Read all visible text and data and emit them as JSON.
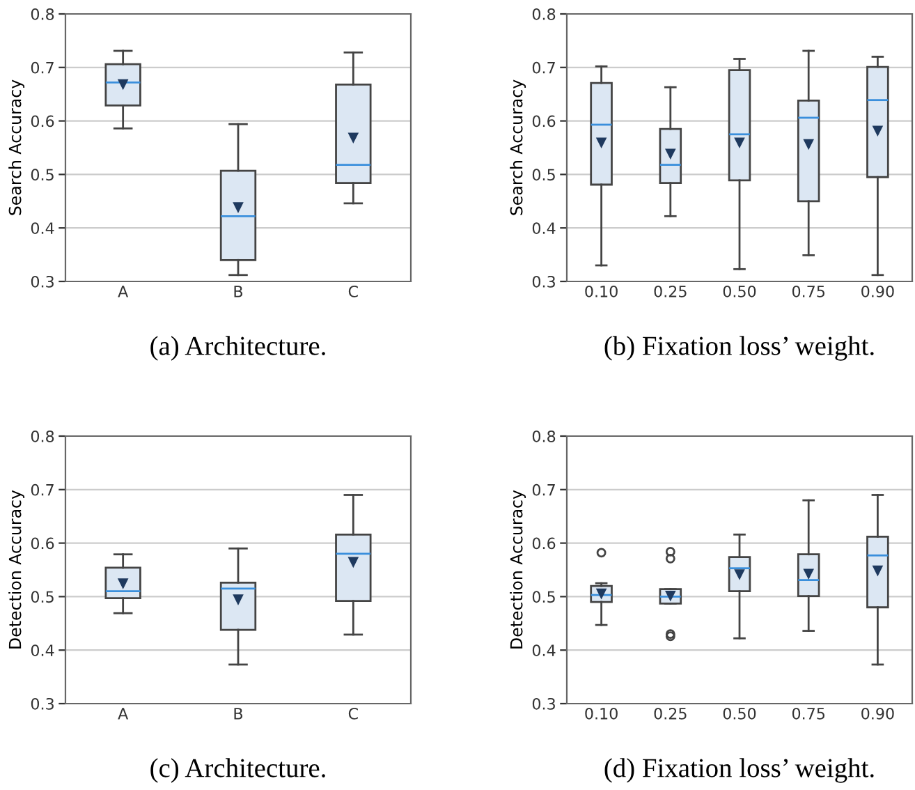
{
  "chart_data": [
    {
      "type": "box",
      "ylabel": "Search Accuracy",
      "categories": [
        "A",
        "B",
        "C"
      ],
      "ylim": [
        0.3,
        0.8
      ],
      "yticks": [
        0.3,
        0.4,
        0.5,
        0.6,
        0.7,
        0.8
      ],
      "grid": "y",
      "annotations": [
        "(a) Architecture."
      ],
      "boxes": [
        {
          "low": 0.586,
          "q1": 0.629,
          "median": 0.672,
          "q3": 0.706,
          "high": 0.731,
          "mean": 0.669
        },
        {
          "low": 0.312,
          "q1": 0.34,
          "median": 0.422,
          "q3": 0.507,
          "high": 0.594,
          "mean": 0.439
        },
        {
          "low": 0.446,
          "q1": 0.484,
          "median": 0.518,
          "q3": 0.668,
          "high": 0.728,
          "mean": 0.569
        }
      ]
    },
    {
      "type": "box",
      "ylabel": "Search Accuracy",
      "categories": [
        "0.10",
        "0.25",
        "0.50",
        "0.75",
        "0.90"
      ],
      "ylim": [
        0.3,
        0.8
      ],
      "yticks": [
        0.3,
        0.4,
        0.5,
        0.6,
        0.7,
        0.8
      ],
      "grid": "y",
      "annotations": [
        "(b) Fixation loss’ weight."
      ],
      "boxes": [
        {
          "low": 0.33,
          "q1": 0.481,
          "median": 0.593,
          "q3": 0.671,
          "high": 0.702,
          "mean": 0.56
        },
        {
          "low": 0.422,
          "q1": 0.484,
          "median": 0.518,
          "q3": 0.585,
          "high": 0.663,
          "mean": 0.539
        },
        {
          "low": 0.323,
          "q1": 0.489,
          "median": 0.575,
          "q3": 0.695,
          "high": 0.716,
          "mean": 0.56
        },
        {
          "low": 0.349,
          "q1": 0.45,
          "median": 0.606,
          "q3": 0.638,
          "high": 0.731,
          "mean": 0.557
        },
        {
          "low": 0.312,
          "q1": 0.495,
          "median": 0.639,
          "q3": 0.701,
          "high": 0.72,
          "mean": 0.582
        }
      ]
    },
    {
      "type": "box",
      "ylabel": "Detection Accuracy",
      "categories": [
        "A",
        "B",
        "C"
      ],
      "ylim": [
        0.3,
        0.8
      ],
      "yticks": [
        0.3,
        0.4,
        0.5,
        0.6,
        0.7,
        0.8
      ],
      "grid": "y",
      "annotations": [
        "(c) Architecture."
      ],
      "boxes": [
        {
          "low": 0.469,
          "q1": 0.497,
          "median": 0.51,
          "q3": 0.554,
          "high": 0.579,
          "mean": 0.525
        },
        {
          "low": 0.373,
          "q1": 0.438,
          "median": 0.515,
          "q3": 0.526,
          "high": 0.59,
          "mean": 0.495
        },
        {
          "low": 0.429,
          "q1": 0.492,
          "median": 0.58,
          "q3": 0.616,
          "high": 0.69,
          "mean": 0.565
        }
      ]
    },
    {
      "type": "box",
      "ylabel": "Detection Accuracy",
      "categories": [
        "0.10",
        "0.25",
        "0.50",
        "0.75",
        "0.90"
      ],
      "ylim": [
        0.3,
        0.8
      ],
      "yticks": [
        0.3,
        0.4,
        0.5,
        0.6,
        0.7,
        0.8
      ],
      "grid": "y",
      "annotations": [
        "(d) Fixation loss’ weight."
      ],
      "boxes": [
        {
          "low": 0.447,
          "q1": 0.49,
          "median": 0.503,
          "q3": 0.52,
          "high": 0.525,
          "mean": 0.506,
          "outliers": [
            0.582
          ]
        },
        {
          "low": 0.487,
          "q1": 0.487,
          "median": 0.5,
          "q3": 0.514,
          "high": 0.514,
          "mean": 0.502,
          "outliers": [
            0.584,
            0.571,
            0.43,
            0.426
          ]
        },
        {
          "low": 0.422,
          "q1": 0.51,
          "median": 0.553,
          "q3": 0.574,
          "high": 0.616,
          "mean": 0.542
        },
        {
          "low": 0.436,
          "q1": 0.501,
          "median": 0.531,
          "q3": 0.579,
          "high": 0.68,
          "mean": 0.543
        },
        {
          "low": 0.373,
          "q1": 0.48,
          "median": 0.577,
          "q3": 0.612,
          "high": 0.69,
          "mean": 0.549
        }
      ]
    }
  ]
}
